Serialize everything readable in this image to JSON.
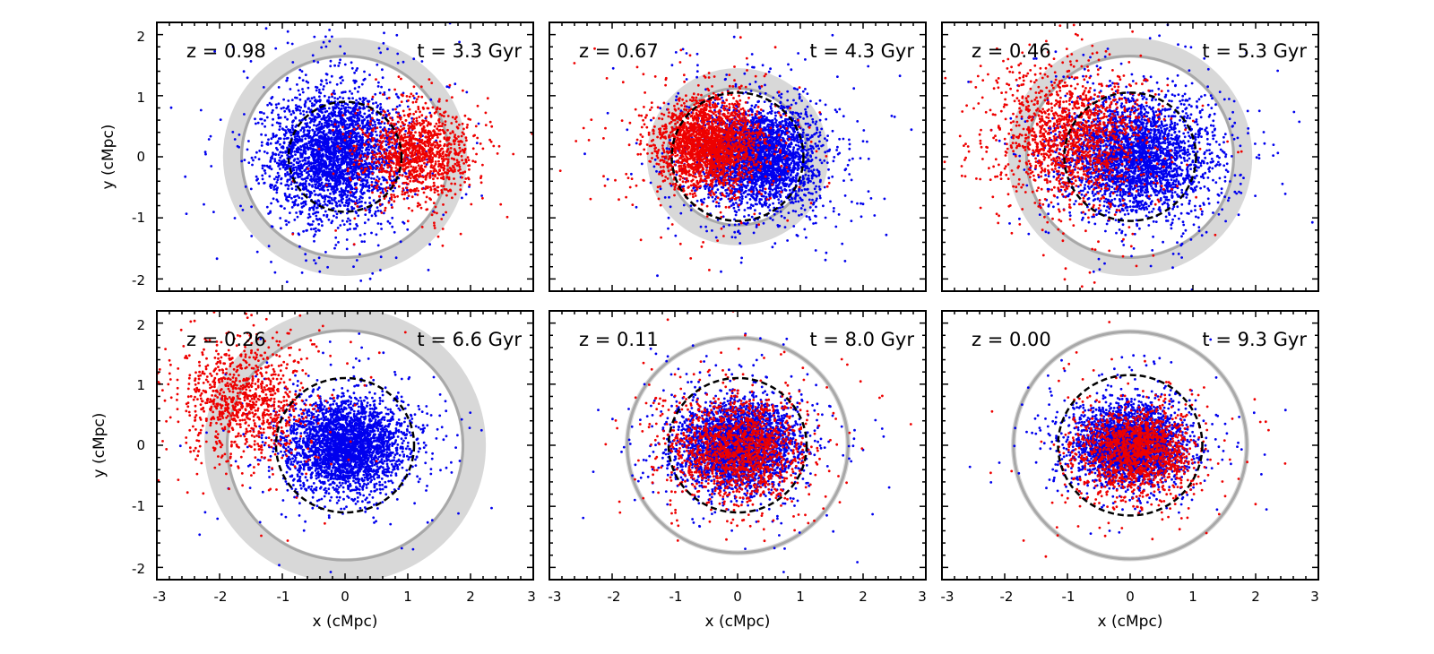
{
  "chart_data": {
    "type": "scatter",
    "layout": "2 rows x 3 columns of panels with shared axes",
    "xlabel": "x (cMpc)",
    "ylabel": "y (cMpc)",
    "xlim": [
      -3,
      3
    ],
    "ylim": [
      -2.2,
      2.2
    ],
    "xticks": [
      -3,
      -2,
      -1,
      0,
      1,
      2,
      3
    ],
    "yticks": [
      -2,
      -1,
      0,
      1,
      2
    ],
    "series_colors": {
      "blue": "#0000ee",
      "red": "#ee0000"
    },
    "shell_colors": {
      "band": "#d8d8d8",
      "line": "#a8a8a8",
      "dashed": "#000000"
    },
    "panels": [
      {
        "id": "p1",
        "z_text": "z = 0.98",
        "t_text": "t = 3.3 Gyr",
        "redshift": 0.98,
        "time_gyr": 3.3,
        "shell_band": {
          "cx": 0,
          "cy": 0,
          "r_inner": 1.62,
          "r_outer": 1.95
        },
        "shell_ring_r": 1.65,
        "dashed_circle": {
          "cx": 0,
          "cy": 0,
          "r": 0.9
        },
        "blue_cloud": {
          "cx": -0.15,
          "cy": 0.05,
          "sx": 0.5,
          "sy": 0.5,
          "n": 3000
        },
        "red_cloud": {
          "cx": 1.15,
          "cy": 0.05,
          "sx": 0.4,
          "sy": 0.35,
          "n": 1200
        }
      },
      {
        "id": "p2",
        "z_text": "z = 0.67",
        "t_text": "t = 4.3 Gyr",
        "redshift": 0.67,
        "time_gyr": 4.3,
        "shell_band": {
          "cx": 0,
          "cy": 0,
          "r_inner": 1.1,
          "r_outer": 1.45
        },
        "shell_ring_r": 1.12,
        "dashed_circle": {
          "cx": 0,
          "cy": 0,
          "r": 1.05
        },
        "blue_cloud": {
          "cx": 0.35,
          "cy": 0.0,
          "sx": 0.45,
          "sy": 0.4,
          "n": 3000
        },
        "red_cloud": {
          "cx": -0.45,
          "cy": 0.2,
          "sx": 0.4,
          "sy": 0.35,
          "n": 2200
        }
      },
      {
        "id": "p3",
        "z_text": "z = 0.46",
        "t_text": "t = 5.3 Gyr",
        "redshift": 0.46,
        "time_gyr": 5.3,
        "shell_band": {
          "cx": 0,
          "cy": 0,
          "r_inner": 1.62,
          "r_outer": 1.95
        },
        "shell_ring_r": 1.65,
        "dashed_circle": {
          "cx": 0,
          "cy": 0,
          "r": 1.05
        },
        "blue_cloud": {
          "cx": 0.1,
          "cy": 0.0,
          "sx": 0.55,
          "sy": 0.45,
          "n": 3000
        },
        "red_cloud": {
          "cx": -0.9,
          "cy": 0.3,
          "sx": 0.6,
          "sy": 0.55,
          "n": 1500
        }
      },
      {
        "id": "p4",
        "z_text": "z = 0.26",
        "t_text": "t = 6.6 Gyr",
        "redshift": 0.26,
        "time_gyr": 6.6,
        "shell_band": {
          "cx": 0,
          "cy": 0,
          "r_inner": 1.85,
          "r_outer": 2.25
        },
        "shell_ring_r": 1.88,
        "dashed_circle": {
          "cx": 0,
          "cy": 0,
          "r": 1.1
        },
        "blue_cloud": {
          "cx": 0.0,
          "cy": 0.0,
          "sx": 0.45,
          "sy": 0.35,
          "n": 3000
        },
        "red_cloud": {
          "cx": -1.6,
          "cy": 0.7,
          "sx": 0.5,
          "sy": 0.5,
          "n": 1000
        }
      },
      {
        "id": "p5",
        "z_text": "z = 0.11",
        "t_text": "t = 8.0 Gyr",
        "redshift": 0.11,
        "time_gyr": 8.0,
        "shell_band": {
          "cx": 0,
          "cy": 0,
          "r_inner": 1.72,
          "r_outer": 1.8
        },
        "shell_ring_r": 1.76,
        "dashed_circle": {
          "cx": 0,
          "cy": 0,
          "r": 1.1
        },
        "blue_cloud": {
          "cx": 0.0,
          "cy": 0.0,
          "sx": 0.45,
          "sy": 0.35,
          "n": 3000
        },
        "red_cloud": {
          "cx": 0.0,
          "cy": -0.05,
          "sx": 0.5,
          "sy": 0.4,
          "n": 1500
        }
      },
      {
        "id": "p6",
        "z_text": "z = 0.00",
        "t_text": "t = 9.3 Gyr",
        "redshift": 0.0,
        "time_gyr": 9.3,
        "shell_band": {
          "cx": 0,
          "cy": 0,
          "r_inner": 1.82,
          "r_outer": 1.9
        },
        "shell_ring_r": 1.86,
        "dashed_circle": {
          "cx": 0,
          "cy": 0,
          "r": 1.15
        },
        "blue_cloud": {
          "cx": 0.0,
          "cy": 0.0,
          "sx": 0.4,
          "sy": 0.3,
          "n": 3000
        },
        "red_cloud": {
          "cx": 0.1,
          "cy": -0.1,
          "sx": 0.45,
          "sy": 0.35,
          "n": 1500
        }
      }
    ]
  }
}
